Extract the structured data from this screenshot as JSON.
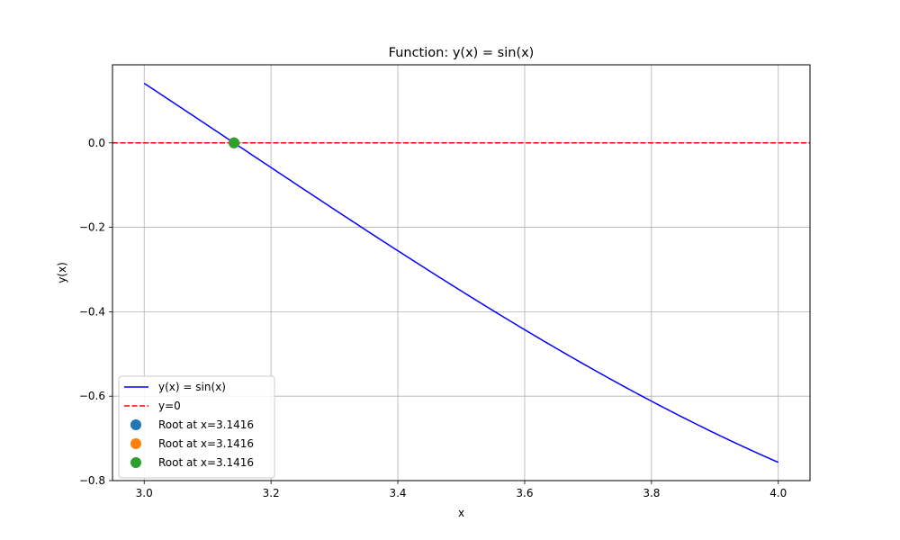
{
  "chart_data": {
    "type": "line",
    "title": "Function: y(x) = sin(x)",
    "xlabel": "x",
    "ylabel": "y(x)",
    "xlim": [
      2.95,
      4.05
    ],
    "ylim": [
      -0.8,
      0.185
    ],
    "grid": true,
    "legend_placement": "lower-left",
    "x_ticks": [
      3.0,
      3.2,
      3.4,
      3.6,
      3.8,
      4.0
    ],
    "x_tick_labels": [
      "3.0",
      "3.2",
      "3.4",
      "3.6",
      "3.8",
      "4.0"
    ],
    "y_ticks": [
      0.0,
      -0.2,
      -0.4,
      -0.6,
      -0.8
    ],
    "y_tick_labels": [
      "0.0",
      "−0.2",
      "−0.4",
      "−0.6",
      "−0.8"
    ],
    "series": [
      {
        "name": "y(x) = sin(x)",
        "kind": "function",
        "function": "sin",
        "x_range": [
          3.0,
          4.0
        ],
        "color": "#0000ff",
        "style": "solid"
      },
      {
        "name": "y=0",
        "kind": "hline",
        "y": 0,
        "color": "#ff0000",
        "style": "dashed"
      },
      {
        "name": "Root at x=3.1416",
        "kind": "point",
        "x": 3.1416,
        "y": 0,
        "color": "#1f77b4"
      },
      {
        "name": "Root at x=3.1416",
        "kind": "point",
        "x": 3.1416,
        "y": 0,
        "color": "#ff7f0e"
      },
      {
        "name": "Root at x=3.1416",
        "kind": "point",
        "x": 3.1416,
        "y": 0,
        "color": "#2ca02c"
      }
    ]
  }
}
